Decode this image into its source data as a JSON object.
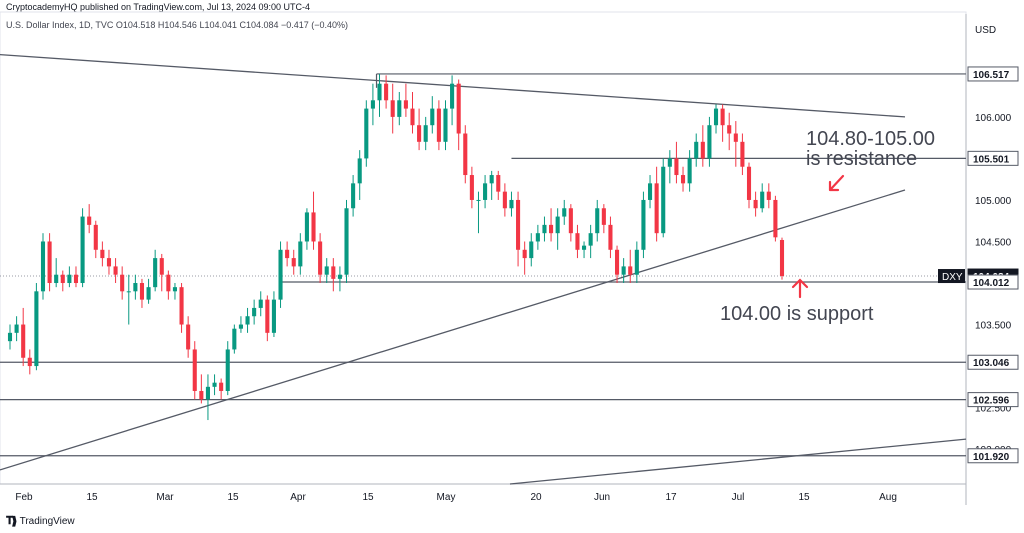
{
  "header": {
    "publisher_line": "CryptocademyHQ published on TradingView.com, Jul 13, 2024 09:00 UTC-4",
    "symbol_line": "U.S. Dollar Index, 1D, TVC  O104.518  H104.546  L104.041  C104.084  −0.417 (−0.40%)"
  },
  "footer": {
    "brand": "TradingView",
    "brand_icon": "tradingview-logo-icon"
  },
  "colors": {
    "up": "#089981",
    "down": "#f23645",
    "line": "#555a66",
    "annotation": "#f23645",
    "text_annotation": "#434651"
  },
  "chart_data": {
    "type": "candlestick",
    "title": "",
    "currency_label": "USD",
    "ylim": [
      101.58,
      106.95
    ],
    "x_ticks": [
      "Feb",
      "15",
      "Mar",
      "15",
      "Apr",
      "15",
      "May",
      "20",
      "Jun",
      "17",
      "Jul",
      "15",
      "Aug"
    ],
    "y_ticks": [
      "106.000",
      "105.000",
      "104.500",
      "103.500",
      "102.500",
      "102.000"
    ],
    "price_labels": [
      {
        "text": "106.517",
        "value": 106.517,
        "kind": "level"
      },
      {
        "text": "105.501",
        "value": 105.501,
        "kind": "level"
      },
      {
        "text": "104.084",
        "value": 104.084,
        "kind": "current"
      },
      {
        "text": "104.012",
        "value": 104.012,
        "kind": "level"
      },
      {
        "text": "103.046",
        "value": 103.046,
        "kind": "level"
      },
      {
        "text": "102.596",
        "value": 102.596,
        "kind": "level"
      },
      {
        "text": "101.920",
        "value": 101.92,
        "kind": "level"
      }
    ],
    "symbol_tag": "DXY",
    "annotations": [
      {
        "text_lines": [
          "104.80-105.00",
          "is resistance"
        ],
        "arrow": "down-left"
      },
      {
        "text_lines": [
          "104.00 is support"
        ],
        "arrow": "up"
      }
    ],
    "candles": [
      [
        103.3,
        103.5,
        103.2,
        103.4
      ],
      [
        103.4,
        103.6,
        103.3,
        103.5
      ],
      [
        103.5,
        103.7,
        103.0,
        103.1
      ],
      [
        103.1,
        103.2,
        102.9,
        103.0
      ],
      [
        103.0,
        104.0,
        102.95,
        103.9
      ],
      [
        103.9,
        104.6,
        103.8,
        104.5
      ],
      [
        104.5,
        104.6,
        103.9,
        104.0
      ],
      [
        104.0,
        104.3,
        103.95,
        104.1
      ],
      [
        104.1,
        104.15,
        103.9,
        104.0
      ],
      [
        104.0,
        104.2,
        103.95,
        104.1
      ],
      [
        104.1,
        104.2,
        103.95,
        104.0
      ],
      [
        104.0,
        104.9,
        103.95,
        104.8
      ],
      [
        104.8,
        104.95,
        104.6,
        104.7
      ],
      [
        104.7,
        104.75,
        104.3,
        104.4
      ],
      [
        104.4,
        104.5,
        104.2,
        104.3
      ],
      [
        104.3,
        104.4,
        104.1,
        104.2
      ],
      [
        104.2,
        104.3,
        104.0,
        104.1
      ],
      [
        104.1,
        104.2,
        103.8,
        103.9
      ],
      [
        103.9,
        104.1,
        103.5,
        103.9
      ],
      [
        103.9,
        104.1,
        103.8,
        104.0
      ],
      [
        104.0,
        104.05,
        103.7,
        103.8
      ],
      [
        103.8,
        104.05,
        103.75,
        103.95
      ],
      [
        103.95,
        104.4,
        103.9,
        104.3
      ],
      [
        104.3,
        104.35,
        103.9,
        104.1
      ],
      [
        104.1,
        104.15,
        103.8,
        103.9
      ],
      [
        103.9,
        104.0,
        103.8,
        103.95
      ],
      [
        103.95,
        104.0,
        103.4,
        103.5
      ],
      [
        103.5,
        103.6,
        103.1,
        103.2
      ],
      [
        103.2,
        103.3,
        102.6,
        102.7
      ],
      [
        102.7,
        102.9,
        102.55,
        102.6
      ],
      [
        102.6,
        102.9,
        102.35,
        102.75
      ],
      [
        102.75,
        102.9,
        102.65,
        102.8
      ],
      [
        102.8,
        102.85,
        102.6,
        102.7
      ],
      [
        102.7,
        103.3,
        102.65,
        103.2
      ],
      [
        103.2,
        103.5,
        103.15,
        103.45
      ],
      [
        103.45,
        103.6,
        103.4,
        103.5
      ],
      [
        103.5,
        103.7,
        103.4,
        103.6
      ],
      [
        103.6,
        103.8,
        103.5,
        103.7
      ],
      [
        103.7,
        103.9,
        103.6,
        103.8
      ],
      [
        103.8,
        103.85,
        103.3,
        103.4
      ],
      [
        103.4,
        103.9,
        103.35,
        103.8
      ],
      [
        103.8,
        104.5,
        103.7,
        104.4
      ],
      [
        104.4,
        104.5,
        104.2,
        104.3
      ],
      [
        104.3,
        104.4,
        104.1,
        104.2
      ],
      [
        104.2,
        104.6,
        104.1,
        104.5
      ],
      [
        104.5,
        104.9,
        104.4,
        104.85
      ],
      [
        104.85,
        105.1,
        104.4,
        104.5
      ],
      [
        104.5,
        104.6,
        104.0,
        104.1
      ],
      [
        104.1,
        104.3,
        104.0,
        104.2
      ],
      [
        104.2,
        104.3,
        103.9,
        104.05
      ],
      [
        104.05,
        104.2,
        103.9,
        104.1
      ],
      [
        104.1,
        105.0,
        104.0,
        104.9
      ],
      [
        104.9,
        105.3,
        104.8,
        105.2
      ],
      [
        105.2,
        105.6,
        105.0,
        105.5
      ],
      [
        105.5,
        106.2,
        105.4,
        106.1
      ],
      [
        106.1,
        106.4,
        105.9,
        106.2
      ],
      [
        106.2,
        106.517,
        106.0,
        106.4
      ],
      [
        106.4,
        106.5,
        106.1,
        106.2
      ],
      [
        106.2,
        106.4,
        105.8,
        106.0
      ],
      [
        106.0,
        106.3,
        105.9,
        106.2
      ],
      [
        106.2,
        106.4,
        106.0,
        106.1
      ],
      [
        106.1,
        106.3,
        105.8,
        105.9
      ],
      [
        105.9,
        106.1,
        105.6,
        105.7
      ],
      [
        105.7,
        106.0,
        105.6,
        105.9
      ],
      [
        105.9,
        106.25,
        105.8,
        106.1
      ],
      [
        106.1,
        106.2,
        105.6,
        105.7
      ],
      [
        105.7,
        106.2,
        105.6,
        106.1
      ],
      [
        106.1,
        106.5,
        105.9,
        106.4
      ],
      [
        106.4,
        106.45,
        105.6,
        105.8
      ],
      [
        105.8,
        105.9,
        105.2,
        105.3
      ],
      [
        105.3,
        105.4,
        104.9,
        105.0
      ],
      [
        105.0,
        105.1,
        104.6,
        105.0
      ],
      [
        105.0,
        105.3,
        104.9,
        105.2
      ],
      [
        105.2,
        105.35,
        105.0,
        105.3
      ],
      [
        105.3,
        105.35,
        105.0,
        105.1
      ],
      [
        105.1,
        105.2,
        104.8,
        104.9
      ],
      [
        104.9,
        105.1,
        104.8,
        105.0
      ],
      [
        105.0,
        105.1,
        104.2,
        104.4
      ],
      [
        104.4,
        104.5,
        104.1,
        104.3
      ],
      [
        104.3,
        104.6,
        104.2,
        104.5
      ],
      [
        104.5,
        104.7,
        104.4,
        104.6
      ],
      [
        104.6,
        104.8,
        104.5,
        104.7
      ],
      [
        104.7,
        104.9,
        104.5,
        104.6
      ],
      [
        104.6,
        104.9,
        104.4,
        104.8
      ],
      [
        104.8,
        105.0,
        104.7,
        104.9
      ],
      [
        104.9,
        104.95,
        104.5,
        104.6
      ],
      [
        104.6,
        104.7,
        104.3,
        104.4
      ],
      [
        104.4,
        104.5,
        104.3,
        104.45
      ],
      [
        104.45,
        104.7,
        104.3,
        104.6
      ],
      [
        104.6,
        105.0,
        104.5,
        104.9
      ],
      [
        104.9,
        104.95,
        104.6,
        104.7
      ],
      [
        104.7,
        104.8,
        104.3,
        104.4
      ],
      [
        104.4,
        104.45,
        104.0,
        104.1
      ],
      [
        104.1,
        104.3,
        104.0,
        104.2
      ],
      [
        104.2,
        104.4,
        104.0,
        104.1
      ],
      [
        104.1,
        104.5,
        104.0,
        104.4
      ],
      [
        104.4,
        105.1,
        104.3,
        105.0
      ],
      [
        105.0,
        105.3,
        104.9,
        105.2
      ],
      [
        105.2,
        105.4,
        104.5,
        104.6
      ],
      [
        104.6,
        105.5,
        104.55,
        105.4
      ],
      [
        105.4,
        105.6,
        105.2,
        105.5
      ],
      [
        105.5,
        105.7,
        105.2,
        105.3
      ],
      [
        105.3,
        105.4,
        105.1,
        105.2
      ],
      [
        105.2,
        105.6,
        105.1,
        105.5
      ],
      [
        105.5,
        105.8,
        105.4,
        105.7
      ],
      [
        105.7,
        105.9,
        105.4,
        105.5
      ],
      [
        105.5,
        106.0,
        105.4,
        105.9
      ],
      [
        105.9,
        106.15,
        105.8,
        106.1
      ],
      [
        106.1,
        106.15,
        105.7,
        105.9
      ],
      [
        105.9,
        106.05,
        105.6,
        105.8
      ],
      [
        105.8,
        105.95,
        105.4,
        105.7
      ],
      [
        105.7,
        105.8,
        105.3,
        105.4
      ],
      [
        105.4,
        105.45,
        104.9,
        105.0
      ],
      [
        105.0,
        105.1,
        104.8,
        104.9
      ],
      [
        104.9,
        105.2,
        104.85,
        105.1
      ],
      [
        105.1,
        105.2,
        104.9,
        105.0
      ],
      [
        105.0,
        105.05,
        104.5,
        104.55
      ],
      [
        104.518,
        104.546,
        104.041,
        104.084
      ]
    ]
  },
  "page": {
    "width": 1024,
    "height": 533
  }
}
